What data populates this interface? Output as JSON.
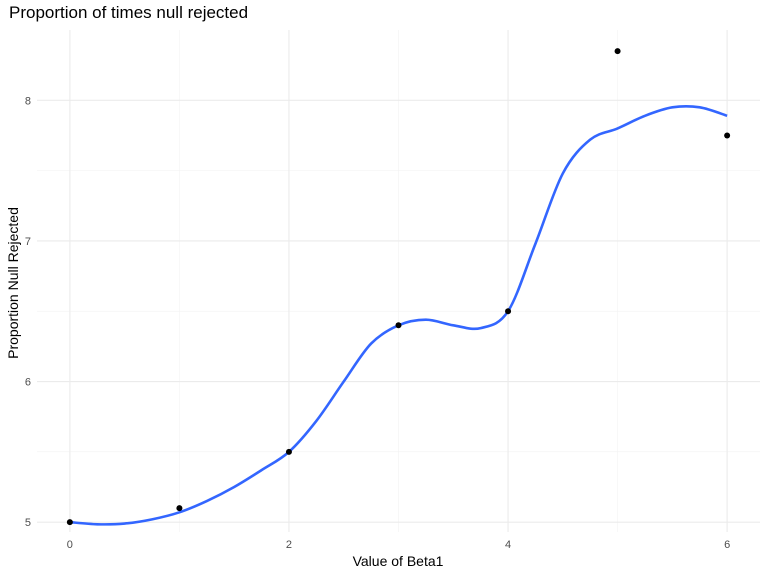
{
  "chart_data": {
    "type": "scatter",
    "title": "Proportion of times null rejected",
    "xlabel": "Value of Beta1",
    "ylabel": "Proportion Null Rejected",
    "xlim": [
      -0.3,
      6.3
    ],
    "ylim": [
      4.93,
      8.5
    ],
    "x_ticks": [
      0,
      2,
      4,
      6
    ],
    "y_ticks": [
      5,
      6,
      7,
      8
    ],
    "grid": true,
    "series": [
      {
        "kind": "points",
        "x": [
          0,
          1,
          2,
          3,
          4,
          5,
          6
        ],
        "y": [
          5.0,
          5.1,
          5.5,
          6.4,
          6.5,
          8.35,
          7.75
        ],
        "color": "#000000"
      },
      {
        "kind": "smooth",
        "x": [
          0,
          0.25,
          0.5,
          0.75,
          1.0,
          1.25,
          1.5,
          1.75,
          2.0,
          2.25,
          2.5,
          2.75,
          3.0,
          3.25,
          3.5,
          3.75,
          4.0,
          4.25,
          4.5,
          4.75,
          5.0,
          5.25,
          5.5,
          5.75,
          6.0
        ],
        "y": [
          5.0,
          4.985,
          4.99,
          5.02,
          5.07,
          5.15,
          5.25,
          5.37,
          5.5,
          5.72,
          6.0,
          6.27,
          6.4,
          6.44,
          6.4,
          6.38,
          6.5,
          6.98,
          7.48,
          7.72,
          7.8,
          7.89,
          7.95,
          7.95,
          7.89
        ],
        "color": "#3366FF"
      }
    ]
  }
}
